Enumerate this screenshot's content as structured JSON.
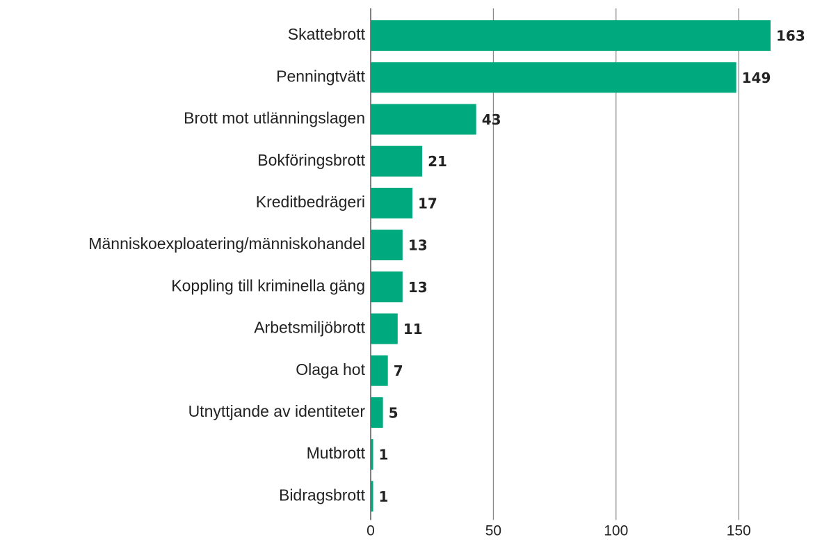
{
  "chart_data": {
    "type": "bar",
    "orientation": "horizontal",
    "categories": [
      "Skattebrott",
      "Penningtvätt",
      "Brott mot utlänningslagen",
      "Bokföringsbrott",
      "Kreditbedrägeri",
      "Människoexploatering/människohandel",
      "Koppling till kriminella gäng",
      "Arbetsmiljöbrott",
      "Olaga hot",
      "Utnyttjande av identiteter",
      "Mutbrott",
      "Bidragsbrott"
    ],
    "values": [
      163,
      149,
      43,
      21,
      17,
      13,
      13,
      11,
      7,
      5,
      1,
      1
    ],
    "color": "#00aa7e",
    "xlim": [
      0,
      180
    ],
    "xticks": [
      0,
      50,
      100,
      150
    ],
    "grid": true
  }
}
